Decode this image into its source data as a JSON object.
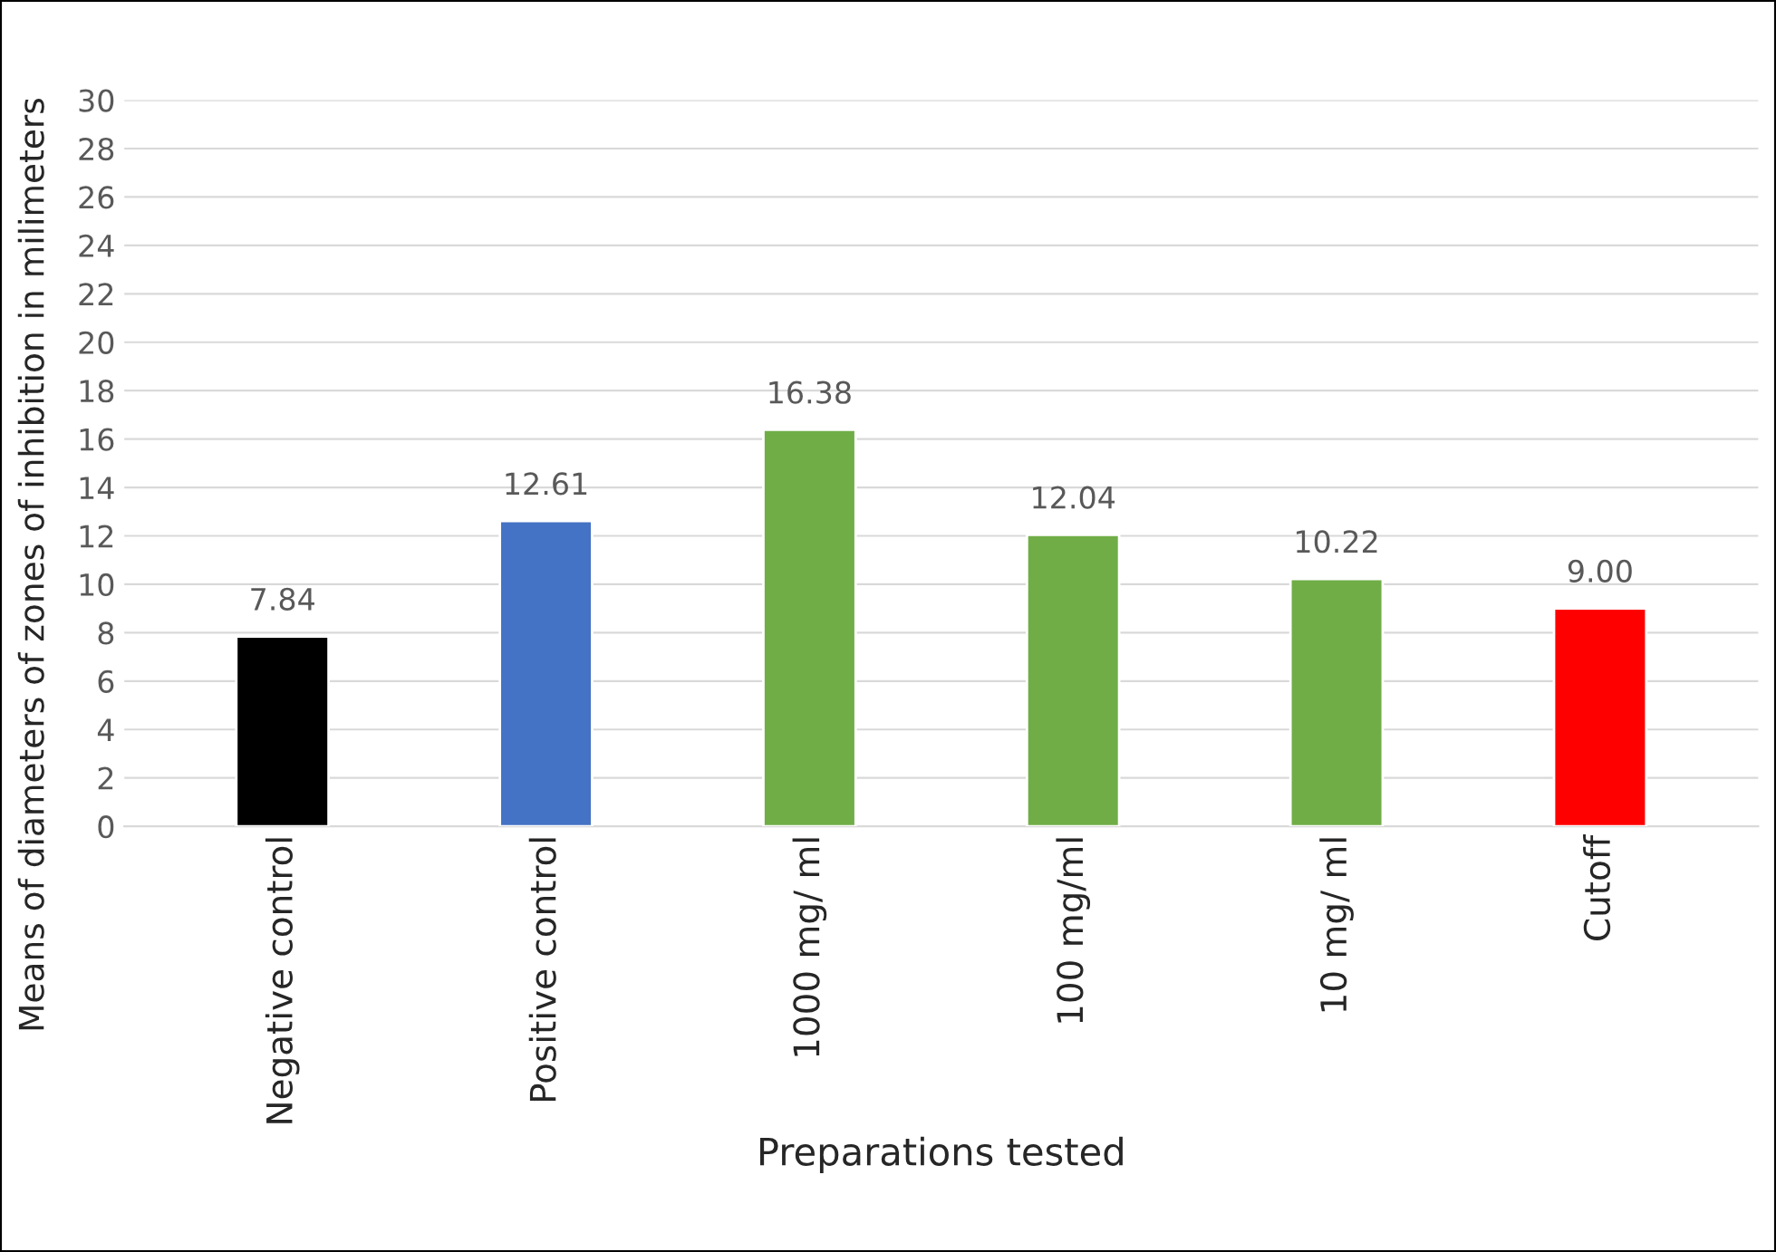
{
  "chart_data": {
    "type": "bar",
    "xlabel": "Preparations tested",
    "ylabel": "Means of diameters of zones of inhibition in milimeters",
    "categories": [
      "Negative control",
      "Positive control",
      "1000 mg/ ml",
      "100 mg/ml",
      "10 mg/ ml",
      "Cutoff"
    ],
    "values": [
      7.84,
      12.61,
      16.38,
      12.04,
      10.22,
      9.0
    ],
    "value_labels": [
      "7.84",
      "12.61",
      "16.38",
      "12.04",
      "10.22",
      "9.00"
    ],
    "colors": [
      "#000000",
      "#4472c4",
      "#70ad47",
      "#70ad47",
      "#70ad47",
      "#ff0000"
    ],
    "ylim": [
      0,
      30
    ],
    "yticks": [
      0,
      2,
      4,
      6,
      8,
      10,
      12,
      14,
      16,
      18,
      20,
      22,
      24,
      26,
      28,
      30
    ],
    "grid": "y"
  }
}
